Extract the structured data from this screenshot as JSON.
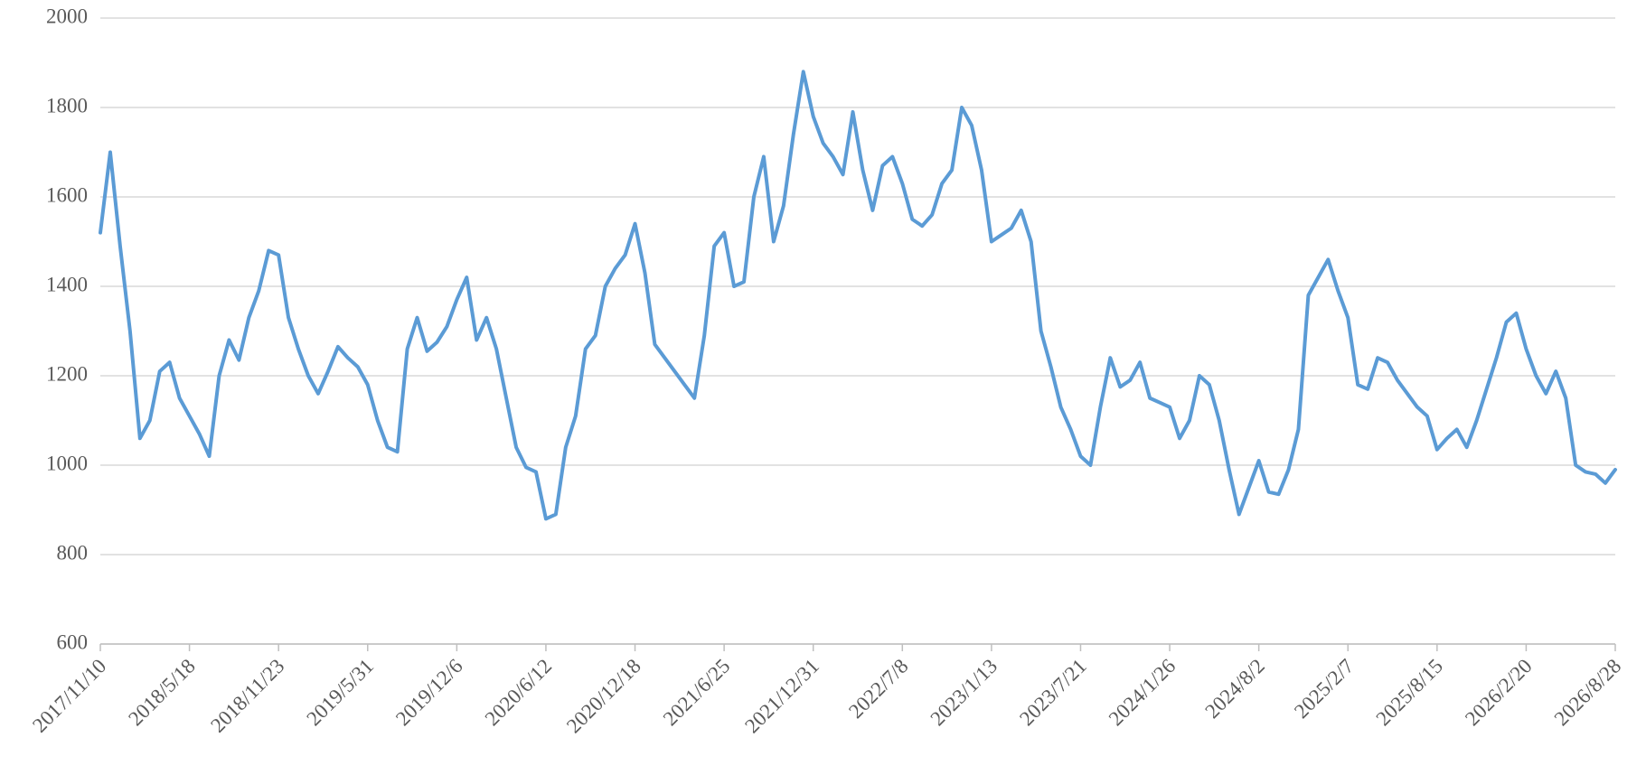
{
  "chart_data": {
    "type": "line",
    "categories": [
      "2017/11/10",
      null,
      null,
      null,
      null,
      null,
      null,
      null,
      null,
      "2018/5/18",
      null,
      null,
      null,
      null,
      null,
      null,
      null,
      null,
      "2018/11/23",
      null,
      null,
      null,
      null,
      null,
      null,
      null,
      null,
      "2019/5/31",
      null,
      null,
      null,
      null,
      null,
      null,
      null,
      null,
      "2019/12/6",
      null,
      null,
      null,
      null,
      null,
      null,
      null,
      null,
      "2020/6/12",
      null,
      null,
      null,
      null,
      null,
      null,
      null,
      null,
      "2020/12/18",
      null,
      null,
      null,
      null,
      null,
      null,
      null,
      null,
      "2021/6/25",
      null,
      null,
      null,
      null,
      null,
      null,
      null,
      null,
      "2021/12/31",
      null,
      null,
      null,
      null,
      null,
      null,
      null,
      null,
      "2022/7/8",
      null,
      null,
      null,
      null,
      null,
      null,
      null,
      null,
      "2023/1/13",
      null,
      null,
      null,
      null,
      null,
      null,
      null,
      null,
      "2023/7/21",
      null,
      null,
      null,
      null,
      null,
      null,
      null,
      null,
      "2024/1/26",
      null,
      null,
      null,
      null,
      null,
      null,
      null,
      null,
      "2024/8/2",
      null,
      null,
      null,
      null,
      null,
      null,
      null,
      null,
      "2025/2/7",
      null,
      null,
      null,
      null,
      null,
      null,
      null,
      null,
      "2025/8/15",
      null,
      null,
      null,
      null,
      null,
      null,
      null,
      null,
      "2026/2/20",
      null,
      null,
      null,
      null,
      null,
      null,
      null,
      null,
      "2026/8/28"
    ],
    "series": [
      {
        "color": "#5b9bd5",
        "values": [
          1520,
          1700,
          1490,
          1300,
          1060,
          1100,
          1210,
          1230,
          1150,
          1110,
          1070,
          1020,
          1200,
          1280,
          1235,
          1330,
          1390,
          1480,
          1470,
          1330,
          1260,
          1200,
          1160,
          1210,
          1265,
          1240,
          1220,
          1180,
          1100,
          1040,
          1030,
          1260,
          1330,
          1255,
          1275,
          1310,
          1370,
          1420,
          1280,
          1330,
          1260,
          1150,
          1040,
          995,
          985,
          880,
          890,
          1040,
          1110,
          1260,
          1290,
          1400,
          1440,
          1470,
          1540,
          1430,
          1270,
          1240,
          1210,
          1180,
          1150,
          1290,
          1490,
          1520,
          1400,
          1410,
          1600,
          1690,
          1500,
          1580,
          1740,
          1880,
          1780,
          1720,
          1690,
          1650,
          1790,
          1660,
          1570,
          1670,
          1690,
          1630,
          1550,
          1535,
          1560,
          1630,
          1660,
          1800,
          1760,
          1660,
          1500,
          1515,
          1530,
          1570,
          1500,
          1300,
          1220,
          1130,
          1080,
          1020,
          1000,
          1130,
          1240,
          1175,
          1190,
          1230,
          1150,
          1140,
          1130,
          1060,
          1100,
          1200,
          1180,
          1100,
          990,
          890,
          950,
          1010,
          940,
          935,
          990,
          1080,
          1380,
          1420,
          1460,
          1390,
          1330,
          1180,
          1170,
          1240,
          1230,
          1190,
          1160,
          1130,
          1110,
          1035,
          1060,
          1080,
          1040,
          1100,
          1170,
          1240,
          1320,
          1340,
          1260,
          1200,
          1160,
          1210,
          1150,
          1000,
          985,
          980,
          960,
          990
        ]
      }
    ],
    "ylim": [
      600,
      2000
    ],
    "yticks": [
      600,
      800,
      1000,
      1200,
      1400,
      1600,
      1800,
      2000
    ],
    "grid": true
  }
}
